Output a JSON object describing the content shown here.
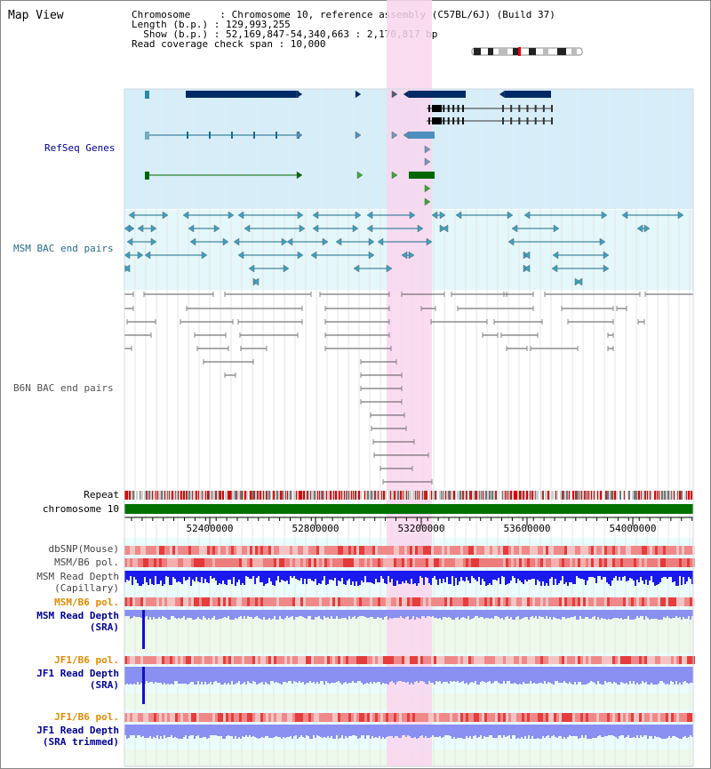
{
  "view": {
    "title": "Map View",
    "info_lines": [
      "Chromosome     : Chromosome 10, reference assembly (C57BL/6J) (Build 37)",
      "Length (b.p.) : 129,993,255",
      "  Show (b.p.) : 52,169,847-54,340,663 : 2,170,817 bp",
      "Read coverage check span : 10,000"
    ]
  },
  "tracks": {
    "refseq": "RefSeq Genes",
    "msm_bac": "MSM BAC end pairs",
    "b6n_bac": "B6N BAC end pairs",
    "repeat": "Repeat",
    "chromosome": "chromosome 10",
    "dbsnp": "dbSNP(Mouse)",
    "msm_pol": "MSM/B6 pol.",
    "msm_depth_cap_1": "MSM Read Depth",
    "msm_depth_cap_2": "(Capillary)",
    "msm_pol_2": "MSM/B6 pol.",
    "msm_depth_sra_1": "MSM Read Depth",
    "msm_depth_sra_2": "(SRA)",
    "jf1_pol": "JF1/B6 pol.",
    "jf1_depth_1": "JF1 Read Depth",
    "jf1_depth_2": "(SRA)",
    "jf1_pol_2": "JF1/B6 pol.",
    "jf1_trim_1": "JF1 Read Depth",
    "jf1_trim_2": "(SRA trimmed)"
  },
  "axis": {
    "ticks": [
      "52400000",
      "52800000",
      "53200000",
      "53600000",
      "54000000"
    ]
  },
  "colors": {
    "refseq_bg": "#d6eef9",
    "msm_bg": "#e4f7fa",
    "highlight": "#f9d6ef",
    "gene_dark": "#002a66",
    "gene_green": "#006600",
    "gene_mid": "#4f8fc0",
    "bac_line": "#1a6b8a",
    "b6n_line": "#555555",
    "repeat_red": "#dd0000",
    "chrom_green": "#007000",
    "depth_blue": "#1a1aee",
    "depth_light": "#8a8ff2",
    "label_blue": "#00009a",
    "label_orange": "#e08a00",
    "label_teal": "#2a6b8a"
  }
}
